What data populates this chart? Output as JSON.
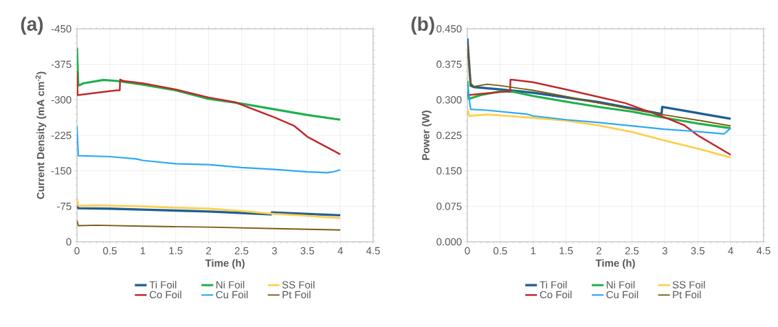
{
  "chart_data": [
    {
      "type": "line",
      "title": "(a)",
      "xlabel": "Time (h)",
      "ylabel": "Current Density (mA cm$^{-2}$)",
      "xlim": [
        0,
        4.5
      ],
      "xticks": [
        0,
        0.5,
        1,
        1.5,
        2,
        2.5,
        3,
        3.5,
        4,
        4.5
      ],
      "ylim": [
        0,
        -450
      ],
      "yticks": [
        0,
        -75,
        -150,
        -225,
        -300,
        -375,
        -450
      ],
      "grid": true,
      "legend": "bottom",
      "series": [
        {
          "name": "Ti Foil",
          "color": "#1f5f93",
          "x": [
            0,
            0.02,
            0.5,
            1,
            1.5,
            2,
            2.5,
            2.95,
            2.96,
            3.5,
            4
          ],
          "values": [
            -78,
            -71,
            -70,
            -68,
            -66,
            -64,
            -61,
            -58,
            -62,
            -59,
            -56
          ]
        },
        {
          "name": "Ni Foil",
          "color": "#1db14b",
          "x": [
            0,
            0.02,
            0.1,
            0.4,
            0.6,
            1,
            1.5,
            2,
            2.5,
            3,
            3.5,
            4
          ],
          "values": [
            -410,
            -330,
            -335,
            -342,
            -340,
            -332,
            -320,
            -302,
            -292,
            -280,
            -268,
            -258
          ]
        },
        {
          "name": "SS Foil",
          "color": "#ffd04d",
          "x": [
            0,
            0.02,
            0.3,
            1,
            1.5,
            2,
            2.5,
            3,
            3.5,
            4
          ],
          "values": [
            -92,
            -76,
            -77,
            -75,
            -72,
            -70,
            -65,
            -59,
            -55,
            -50
          ]
        },
        {
          "name": "Co Foil",
          "color": "#c0282a",
          "x": [
            0,
            0.01,
            0.3,
            0.6,
            0.65,
            0.655,
            0.7,
            1,
            1.5,
            2,
            2.4,
            3,
            3.3,
            3.5,
            4
          ],
          "values": [
            -360,
            -310,
            -315,
            -320,
            -320,
            -343,
            -340,
            -335,
            -322,
            -305,
            -295,
            -263,
            -245,
            -222,
            -185
          ]
        },
        {
          "name": "Cu Foil",
          "color": "#2aa8f5",
          "x": [
            0,
            0.02,
            0.5,
            0.9,
            1,
            1.5,
            2,
            2.5,
            3,
            3.5,
            3.8,
            3.9,
            4
          ],
          "values": [
            -245,
            -182,
            -180,
            -175,
            -172,
            -165,
            -163,
            -157,
            -153,
            -148,
            -146,
            -148,
            -152
          ]
        },
        {
          "name": "Pt Foil",
          "color": "#7a5a10",
          "x": [
            0,
            0.02,
            0.3,
            1,
            2,
            3,
            4
          ],
          "values": [
            -45,
            -34,
            -35,
            -33,
            -31,
            -28,
            -25
          ]
        }
      ]
    },
    {
      "type": "line",
      "title": "(b)",
      "xlabel": "Time (h)",
      "ylabel": "Power (W)",
      "xlim": [
        0,
        4.5
      ],
      "xticks": [
        0,
        0.5,
        1,
        1.5,
        2,
        2.5,
        3,
        3.5,
        4,
        4.5
      ],
      "ylim": [
        0,
        0.45
      ],
      "yticks": [
        {
          "value": 0,
          "label": "0.000"
        },
        {
          "value": 0.075,
          "label": "0.075"
        },
        {
          "value": 0.15,
          "label": "0.150"
        },
        {
          "value": 0.225,
          "label": "0.225"
        },
        {
          "value": 0.3,
          "label": "0.300"
        },
        {
          "value": 0.375,
          "label": "0.375"
        },
        {
          "value": 0.45,
          "label": "0.450"
        }
      ],
      "grid": true,
      "legend": "bottom",
      "series": [
        {
          "name": "Ti Foil",
          "color": "#1f5f93",
          "x": [
            0,
            0.05,
            0.1,
            0.5,
            1,
            1.5,
            2,
            2.5,
            2.95,
            2.96,
            4
          ],
          "values": [
            0.43,
            0.33,
            0.327,
            0.322,
            0.315,
            0.305,
            0.295,
            0.282,
            0.27,
            0.285,
            0.26
          ]
        },
        {
          "name": "Ni Foil",
          "color": "#1db14b",
          "x": [
            0,
            0.02,
            0.2,
            0.5,
            0.7,
            1,
            1.5,
            2,
            2.5,
            3,
            3.5,
            4
          ],
          "values": [
            0.34,
            0.302,
            0.31,
            0.318,
            0.317,
            0.308,
            0.296,
            0.285,
            0.275,
            0.262,
            0.25,
            0.24
          ]
        },
        {
          "name": "SS Foil",
          "color": "#ffd04d",
          "x": [
            0,
            0.03,
            0.3,
            1,
            1.5,
            2,
            2.5,
            3,
            3.5,
            4
          ],
          "values": [
            0.28,
            0.266,
            0.269,
            0.262,
            0.256,
            0.246,
            0.232,
            0.214,
            0.197,
            0.178
          ]
        },
        {
          "name": "Co Foil",
          "color": "#c0282a",
          "x": [
            0,
            0.6,
            0.65,
            0.655,
            1,
            1.5,
            2,
            2.4,
            3,
            3.3,
            3.5,
            4
          ],
          "values": [
            0.31,
            0.318,
            0.318,
            0.343,
            0.337,
            0.322,
            0.306,
            0.293,
            0.263,
            0.246,
            0.225,
            0.184
          ]
        },
        {
          "name": "Cu Foil",
          "color": "#2aa8f5",
          "x": [
            0,
            0.05,
            0.3,
            0.9,
            1,
            1.5,
            2,
            2.5,
            3,
            3.5,
            3.9,
            4
          ],
          "values": [
            0.33,
            0.28,
            0.278,
            0.27,
            0.266,
            0.258,
            0.252,
            0.245,
            0.238,
            0.233,
            0.228,
            0.24
          ]
        },
        {
          "name": "Pt Foil",
          "color": "#7a5a10",
          "x": [
            0,
            0.05,
            0.1,
            0.3,
            0.5,
            1,
            1.5,
            2,
            2.5,
            3,
            3.5,
            4
          ],
          "values": [
            0.42,
            0.335,
            0.328,
            0.333,
            0.33,
            0.32,
            0.307,
            0.293,
            0.28,
            0.268,
            0.257,
            0.245
          ]
        }
      ]
    }
  ]
}
